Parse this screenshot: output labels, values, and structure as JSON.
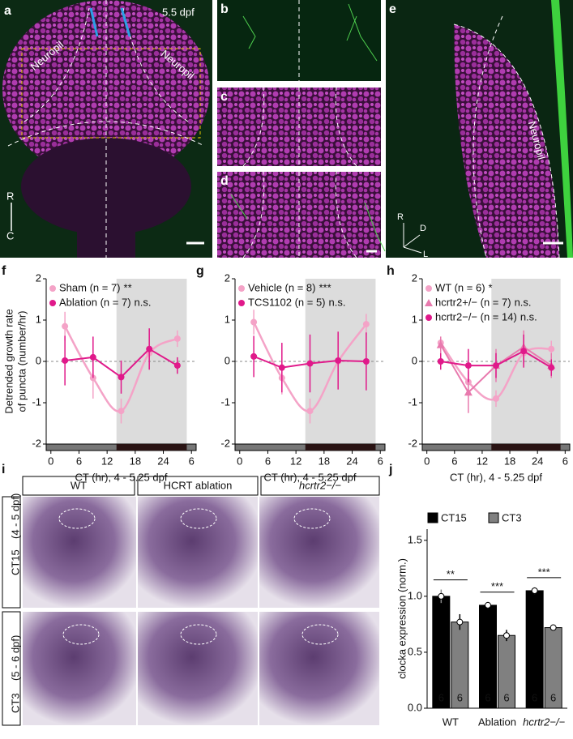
{
  "panels": {
    "letters": [
      "a",
      "b",
      "c",
      "d",
      "e",
      "f",
      "g",
      "h",
      "i",
      "j"
    ]
  },
  "image_a": {
    "stage": "5.5 dpf",
    "labels": [
      "Neuropil",
      "Neuropil"
    ],
    "axis": [
      "R",
      "C"
    ]
  },
  "image_e": {
    "label": "Neuropil",
    "axis": [
      "R",
      "D",
      "L"
    ]
  },
  "panel_i": {
    "columns": [
      "WT",
      "HCRT ablation",
      "hcrtr2−/−"
    ],
    "rows": [
      {
        "name": "CT15",
        "stage": "(4 - 5 dpf)"
      },
      {
        "name": "CT3",
        "stage": "(5 - 6 dpf)"
      }
    ]
  },
  "chart_data": [
    {
      "type": "line",
      "ylabel": [
        "Detrended growth rate",
        "of puncta (number/hr)"
      ],
      "xlabel": "CT (hr), 4 - 5.25 dpf",
      "x": [
        3,
        9,
        15,
        21,
        27
      ],
      "xlim": [
        -1,
        31
      ],
      "xticks": [
        0,
        6,
        12,
        18,
        24,
        {
          "value": 30,
          "label": "6"
        }
      ],
      "ylim": [
        -2,
        2
      ],
      "yticks": [
        -2,
        -1,
        0,
        1,
        2
      ],
      "night": [
        14,
        29
      ],
      "series": [
        {
          "name": "Sham (n = 7)",
          "significance": "**",
          "color": "#f4a3c7",
          "marker": "circle",
          "values": [
            0.85,
            -0.4,
            -1.2,
            0.2,
            0.55
          ],
          "errors": [
            0.35,
            0.5,
            0.3,
            0.4,
            0.2
          ]
        },
        {
          "name": "Ablation (n = 7)",
          "significance": "n.s.",
          "color": "#e0198a",
          "marker": "circle",
          "values": [
            0.02,
            0.1,
            -0.38,
            0.3,
            -0.1
          ],
          "errors": [
            0.6,
            0.5,
            0.4,
            0.5,
            0.2
          ]
        }
      ]
    },
    {
      "type": "line",
      "xlabel": "CT (hr), 4 - 5.25 dpf",
      "x": [
        3,
        9,
        15,
        21,
        27
      ],
      "xlim": [
        -1,
        31
      ],
      "xticks": [
        0,
        6,
        12,
        18,
        24,
        {
          "value": 30,
          "label": "6"
        }
      ],
      "ylim": [
        -2,
        2
      ],
      "yticks": [
        -2,
        -1,
        0,
        1,
        2
      ],
      "night": [
        14,
        29
      ],
      "series": [
        {
          "name": "Vehicle (n = 8)",
          "significance": "***",
          "color": "#f4a3c7",
          "marker": "circle",
          "values": [
            0.95,
            -0.4,
            -1.2,
            0.0,
            0.9
          ],
          "errors": [
            0.3,
            0.4,
            0.3,
            0.5,
            0.25
          ]
        },
        {
          "name": "TCS1102 (n = 5)",
          "significance": "n.s.",
          "color": "#e0198a",
          "marker": "circle",
          "values": [
            0.12,
            -0.15,
            -0.05,
            0.02,
            0.0
          ],
          "errors": [
            0.5,
            0.6,
            0.7,
            0.7,
            0.7
          ]
        }
      ]
    },
    {
      "type": "line",
      "xlabel": "CT (hr), 4 - 5.25 dpf",
      "x": [
        3,
        9,
        15,
        21,
        27
      ],
      "xlim": [
        -1,
        31
      ],
      "xticks": [
        0,
        6,
        12,
        18,
        24,
        {
          "value": 30,
          "label": "6"
        }
      ],
      "ylim": [
        -2,
        2
      ],
      "yticks": [
        -2,
        -1,
        0,
        1,
        2
      ],
      "night": [
        14,
        29
      ],
      "series": [
        {
          "name": "WT (n = 6)",
          "significance": "*",
          "color": "#f4a3c7",
          "marker": "circle",
          "values": [
            0.45,
            -0.5,
            -0.9,
            0.2,
            0.3
          ],
          "errors": [
            0.15,
            0.3,
            0.2,
            0.3,
            0.2
          ]
        },
        {
          "name": "hcrtr2+/− (n = 7)",
          "significance": "n.s.",
          "color": "#e87aae",
          "marker": "triangle",
          "values": [
            0.4,
            -0.75,
            -0.1,
            0.35,
            -0.1
          ],
          "errors": [
            0.2,
            0.5,
            0.4,
            0.4,
            0.3
          ]
        },
        {
          "name": "hcrtr2−/− (n = 14)",
          "significance": "n.s.",
          "color": "#e0198a",
          "marker": "circle",
          "values": [
            0.0,
            -0.1,
            -0.1,
            0.25,
            -0.15
          ],
          "errors": [
            0.2,
            0.4,
            0.3,
            0.4,
            0.2
          ]
        }
      ]
    },
    {
      "type": "bar",
      "ylabel": "clocka expression (norm.)",
      "categories": [
        "WT",
        "Ablation",
        "hcrtr2−/−"
      ],
      "ylim": [
        0,
        1.6
      ],
      "yticks": [
        {
          "value": 0,
          "label": "0.0"
        },
        {
          "value": 0.5,
          "label": "0.5"
        },
        {
          "value": 1,
          "label": "1.0"
        },
        {
          "value": 1.5,
          "label": "1.5"
        }
      ],
      "significance": [
        "**",
        "***",
        "***"
      ],
      "series": [
        {
          "name": "CT15",
          "color": "#000000",
          "values": [
            1.0,
            0.92,
            1.05
          ],
          "errors": [
            0.06,
            0.03,
            0.03
          ],
          "counts": [
            6,
            6,
            6
          ]
        },
        {
          "name": "CT3",
          "color": "#808080",
          "values": [
            0.77,
            0.65,
            0.72
          ],
          "errors": [
            0.07,
            0.05,
            0.02
          ],
          "counts": [
            6,
            6,
            6
          ]
        }
      ]
    }
  ]
}
